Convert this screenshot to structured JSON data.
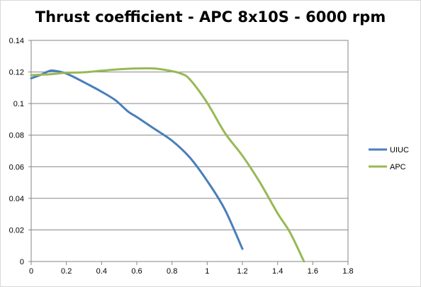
{
  "chart_data": {
    "type": "line",
    "title": "Thrust coefficient - APC 8x10S - 6000 rpm",
    "xlabel": "",
    "ylabel": "",
    "xlim": [
      0,
      1.8
    ],
    "ylim": [
      0,
      0.14
    ],
    "x_ticks": [
      "0",
      "0.2",
      "0.4",
      "0.6",
      "0.8",
      "1",
      "1.2",
      "1.4",
      "1.6",
      "1.8"
    ],
    "y_ticks": [
      "0",
      "0.02",
      "0.04",
      "0.06",
      "0.08",
      "0.1",
      "0.12",
      "0.14"
    ],
    "grid": "horizontal",
    "legend_position": "right",
    "series": [
      {
        "name": "UIUC",
        "color": "#4a7ebb",
        "points": [
          [
            0,
            0.116
          ],
          [
            0.05,
            0.118
          ],
          [
            0.1,
            0.1205
          ],
          [
            0.13,
            0.1208
          ],
          [
            0.2,
            0.119
          ],
          [
            0.3,
            0.1135
          ],
          [
            0.4,
            0.1075
          ],
          [
            0.48,
            0.102
          ],
          [
            0.55,
            0.095
          ],
          [
            0.6,
            0.0915
          ],
          [
            0.7,
            0.084
          ],
          [
            0.8,
            0.0765
          ],
          [
            0.9,
            0.066
          ],
          [
            1.0,
            0.051
          ],
          [
            1.1,
            0.033
          ],
          [
            1.2,
            0.008
          ]
        ]
      },
      {
        "name": "APC",
        "color": "#98b954",
        "points": [
          [
            0,
            0.118
          ],
          [
            0.1,
            0.1185
          ],
          [
            0.2,
            0.1195
          ],
          [
            0.3,
            0.1198
          ],
          [
            0.4,
            0.1208
          ],
          [
            0.5,
            0.1217
          ],
          [
            0.6,
            0.1222
          ],
          [
            0.7,
            0.1222
          ],
          [
            0.8,
            0.1205
          ],
          [
            0.85,
            0.119
          ],
          [
            0.9,
            0.1155
          ],
          [
            1.0,
            0.1005
          ],
          [
            1.1,
            0.0815
          ],
          [
            1.2,
            0.067
          ],
          [
            1.3,
            0.05
          ],
          [
            1.4,
            0.0305
          ],
          [
            1.47,
            0.0185
          ],
          [
            1.55,
            0.0
          ]
        ]
      }
    ]
  }
}
